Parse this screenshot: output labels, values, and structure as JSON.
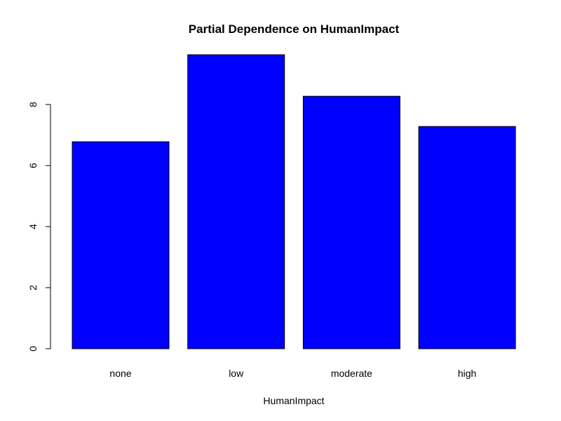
{
  "chart_data": {
    "type": "bar",
    "title": "Partial Dependence on HumanImpact",
    "xlabel": "HumanImpact",
    "ylabel": "",
    "categories": [
      "none",
      "low",
      "moderate",
      "high"
    ],
    "values": [
      6.78,
      9.63,
      8.27,
      7.28
    ],
    "ylim": [
      0,
      9.63
    ],
    "yticks": [
      0,
      2,
      4,
      6,
      8
    ],
    "bar_color": "#0000ff",
    "grid": false,
    "legend": "none"
  }
}
